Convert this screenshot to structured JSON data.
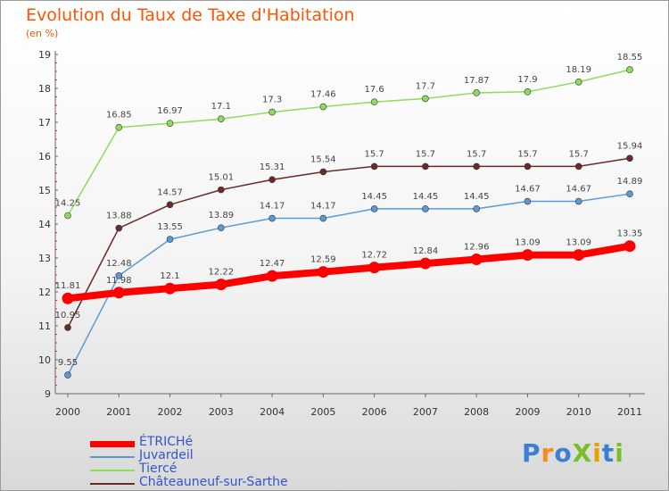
{
  "header": {
    "title": "Evolution du Taux de Taxe d'Habitation",
    "subtitle": "(en %)"
  },
  "logo": {
    "text": "ProXiti",
    "letters": [
      "P",
      "r",
      "o",
      "X",
      "i",
      "t",
      "i"
    ],
    "colors": [
      "#3a7fd4",
      "#f28c1c",
      "#3a7fd4",
      "#7abf2a",
      "#e8a000",
      "#3a7fd4",
      "#7abf2a"
    ]
  },
  "chart_data": {
    "type": "line",
    "title": "Evolution du Taux de Taxe d'Habitation",
    "ylabel": "(en %)",
    "xlabel": "",
    "x": [
      "2000",
      "2001",
      "2002",
      "2003",
      "2004",
      "2005",
      "2006",
      "2007",
      "2008",
      "2009",
      "2010",
      "2011"
    ],
    "ylim": [
      9,
      19
    ],
    "yticks": [
      "9",
      "10",
      "11",
      "12",
      "13",
      "14",
      "15",
      "16",
      "17",
      "18",
      "19"
    ],
    "grid": false,
    "legend_position": "bottom-left",
    "series": [
      {
        "name": "ÉTRICHé",
        "color": "#ff0000",
        "values": [
          11.81,
          11.98,
          12.1,
          12.22,
          12.47,
          12.59,
          12.72,
          12.84,
          12.96,
          13.09,
          13.09,
          13.35
        ],
        "labels": [
          "11.81",
          "11.98",
          "12.1",
          "12.22",
          "12.47",
          "12.59",
          "12.72",
          "12.84",
          "12.96",
          "13.09",
          "13.09",
          "13.35"
        ]
      },
      {
        "name": "Juvardeil",
        "color": "#5b9bd5",
        "values": [
          9.55,
          12.48,
          13.55,
          13.89,
          14.17,
          14.17,
          14.45,
          14.45,
          14.45,
          14.67,
          14.67,
          14.89
        ],
        "labels": [
          "9.55",
          "12.48",
          "13.55",
          "13.89",
          "14.17",
          "14.17",
          "14.45",
          "14.45",
          "14.45",
          "14.67",
          "14.67",
          "14.89"
        ]
      },
      {
        "name": "Tiercé",
        "color": "#8fdc5a",
        "values": [
          14.25,
          16.85,
          16.97,
          17.1,
          17.3,
          17.46,
          17.6,
          17.7,
          17.87,
          17.9,
          18.19,
          18.55
        ],
        "labels": [
          "14.25",
          "16.85",
          "16.97",
          "17.1",
          "17.3",
          "17.46",
          "17.6",
          "17.7",
          "17.87",
          "17.9",
          "18.19",
          "18.55"
        ]
      },
      {
        "name": "Châteauneuf-sur-Sarthe",
        "color": "#6b2a2a",
        "values": [
          10.95,
          13.88,
          14.57,
          15.01,
          15.31,
          15.54,
          15.7,
          15.7,
          15.7,
          15.7,
          15.7,
          15.94
        ],
        "labels": [
          "10.95",
          "13.88",
          "14.57",
          "15.01",
          "15.31",
          "15.54",
          "15.7",
          "15.7",
          "15.7",
          "15.7",
          "15.7",
          "15.94"
        ]
      }
    ]
  }
}
